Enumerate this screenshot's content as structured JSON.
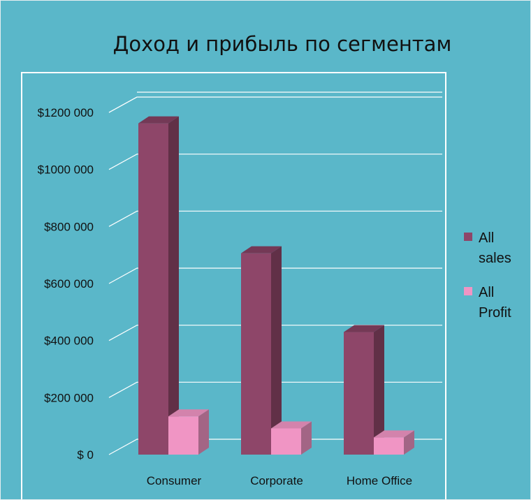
{
  "chart_data": {
    "type": "bar",
    "title": "Доход и прибыль по сегментам",
    "categories": [
      "Consumer",
      "Corporate",
      "Home Office"
    ],
    "series": [
      {
        "name": "All sales",
        "values": [
          1161700,
          706100,
          429700
        ],
        "color": "#8e4669"
      },
      {
        "name": "All Profit",
        "values": [
          134100,
          91900,
          60300
        ],
        "color": "#f095c4"
      }
    ],
    "y_ticks": [
      {
        "value": 0,
        "label": "$ 0"
      },
      {
        "value": 200000,
        "label": "$200 000"
      },
      {
        "value": 400000,
        "label": "$400 000"
      },
      {
        "value": 600000,
        "label": "$600 000"
      },
      {
        "value": 800000,
        "label": "$800 000"
      },
      {
        "value": 1000000,
        "label": "$1000 000"
      },
      {
        "value": 1200000,
        "label": "$1200 000"
      }
    ],
    "ylim": [
      0,
      1200000
    ],
    "grid": true,
    "legend_position": "right",
    "three_d": true,
    "background_color": "#5ab7c9",
    "gridline_color": "#ffffff"
  }
}
